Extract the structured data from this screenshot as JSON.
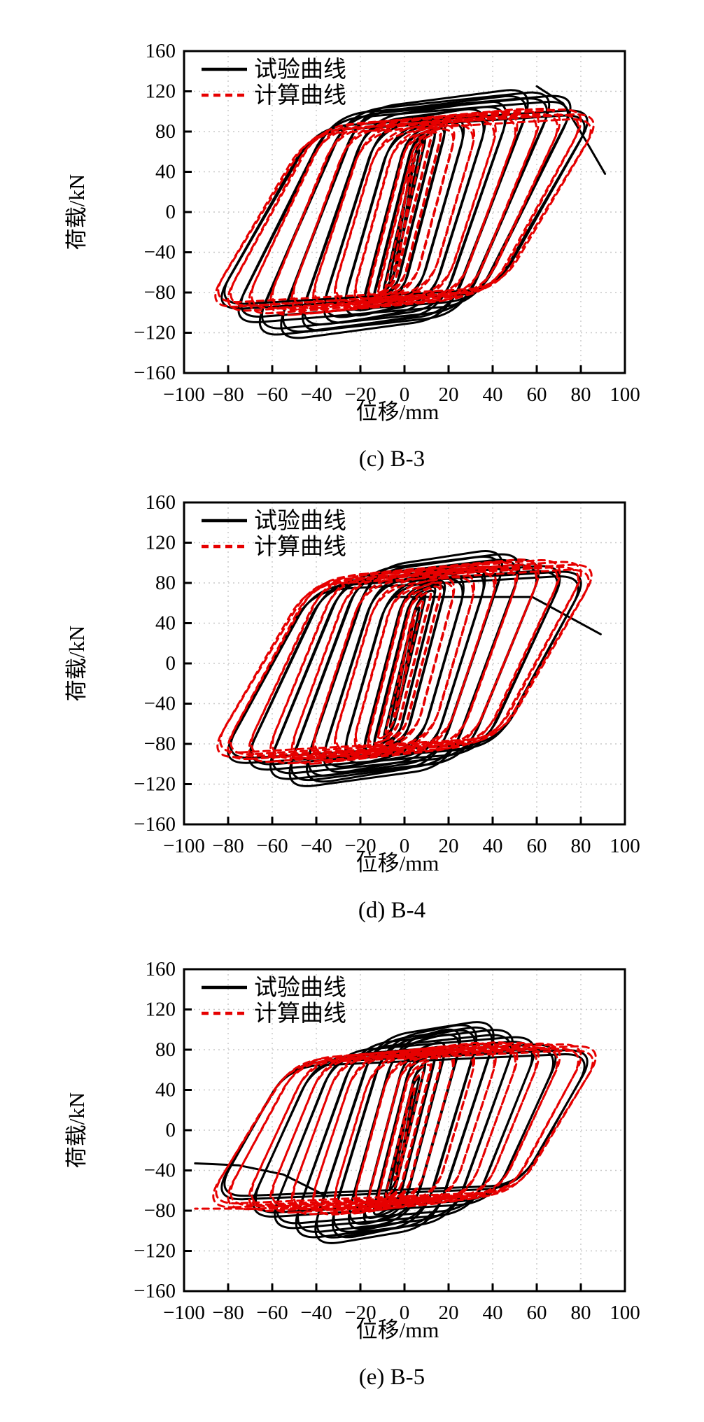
{
  "page": {
    "background": "#ffffff"
  },
  "colors": {
    "test_curve": "#000000",
    "calc_curve": "#e60000",
    "grid": "#c8c8c8",
    "axis": "#000000"
  },
  "legend": {
    "test_label": "试验曲线",
    "calc_label": "计算曲线"
  },
  "axes": {
    "xlabel": "位移/mm",
    "ylabel": "荷载/kN",
    "xlim": [
      -100,
      100
    ],
    "ylim": [
      -160,
      160
    ],
    "x_ticks": [
      -100,
      -80,
      -60,
      -40,
      -20,
      0,
      20,
      40,
      60,
      80,
      100
    ],
    "y_ticks": [
      -160,
      -120,
      -80,
      -40,
      0,
      40,
      80,
      120,
      160
    ],
    "grid": true,
    "legend_position": "top-left"
  },
  "chart_data": [
    {
      "type": "line",
      "id": "c",
      "caption": "(c) B-3",
      "xlabel": "位移/mm",
      "ylabel": "荷载/kN",
      "xlim": [
        -100,
        100
      ],
      "ylim": [
        -160,
        160
      ],
      "description": "hysteresis loops: cycles are [displacement amplitude mm, peak +load kN, peak -load kN]",
      "series": [
        {
          "name": "试验曲线",
          "style": "solid",
          "color": "#000000",
          "cycles": [
            [
              4,
              48,
              52
            ],
            [
              7,
              64,
              70
            ],
            [
              10,
              78,
              84
            ],
            [
              15,
              87,
              94
            ],
            [
              20,
              93,
              101
            ],
            [
              30,
              100,
              109
            ],
            [
              40,
              107,
              115
            ],
            [
              50,
              114,
              122
            ],
            [
              60,
              125,
              129
            ],
            [
              70,
              122,
              125
            ],
            [
              80,
              118,
              112
            ],
            [
              88,
              103,
              98
            ]
          ],
          "tails": [
            [
              [
                60,
                125
              ],
              [
                72,
                108
              ],
              [
                82,
                72
              ],
              [
                91,
                38
              ]
            ]
          ]
        },
        {
          "name": "计算曲线",
          "style": "dashed",
          "color": "#e60000",
          "cycles": [
            [
              5,
              55,
              60
            ],
            [
              9,
              72,
              78
            ],
            [
              13,
              83,
              88
            ],
            [
              18,
              88,
              92
            ],
            [
              25,
              92,
              96
            ],
            [
              35,
              96,
              99
            ],
            [
              45,
              100,
              102
            ],
            [
              55,
              103,
              104
            ],
            [
              65,
              105,
              105
            ],
            [
              75,
              105,
              103
            ],
            [
              85,
              104,
              100
            ],
            [
              91,
              99,
              96
            ]
          ],
          "tails": []
        }
      ]
    },
    {
      "type": "line",
      "id": "d",
      "caption": "(d) B-4",
      "xlabel": "位移/mm",
      "ylabel": "荷载/kN",
      "xlim": [
        -100,
        100
      ],
      "ylim": [
        -160,
        160
      ],
      "description": "hysteresis loops: cycles are [displacement amplitude mm, peak +load kN, peak -load kN]",
      "series": [
        {
          "name": "试验曲线",
          "style": "solid",
          "color": "#000000",
          "cycles": [
            [
              4,
              42,
              48
            ],
            [
              7,
              58,
              66
            ],
            [
              10,
              72,
              80
            ],
            [
              15,
              80,
              90
            ],
            [
              20,
              87,
              97
            ],
            [
              30,
              94,
              105
            ],
            [
              40,
              102,
              113
            ],
            [
              48,
              116,
              122
            ],
            [
              56,
              112,
              126
            ],
            [
              65,
              106,
              118
            ],
            [
              75,
              99,
              108
            ],
            [
              85,
              93,
              101
            ]
          ],
          "tails": [
            [
              [
                -5,
                66
              ],
              [
                58,
                66
              ],
              [
                89,
                29
              ]
            ]
          ]
        },
        {
          "name": "计算曲线",
          "style": "dashed",
          "color": "#e60000",
          "cycles": [
            [
              5,
              50,
              55
            ],
            [
              9,
              66,
              72
            ],
            [
              13,
              78,
              82
            ],
            [
              18,
              85,
              88
            ],
            [
              25,
              90,
              93
            ],
            [
              35,
              95,
              98
            ],
            [
              45,
              100,
              101
            ],
            [
              55,
              104,
              103
            ],
            [
              65,
              106,
              102
            ],
            [
              75,
              105,
              100
            ],
            [
              85,
              103,
              97
            ],
            [
              90,
              100,
              95
            ]
          ],
          "tails": []
        }
      ]
    },
    {
      "type": "line",
      "id": "e",
      "caption": "(e) B-5",
      "xlabel": "位移/mm",
      "ylabel": "荷载/kN",
      "xlim": [
        -100,
        100
      ],
      "ylim": [
        -160,
        160
      ],
      "description": "hysteresis loops: cycles are [displacement amplitude mm, peak +load kN, peak -load kN]",
      "series": [
        {
          "name": "试验曲线",
          "style": "solid",
          "color": "#000000",
          "cycles": [
            [
              4,
              40,
              45
            ],
            [
              7,
              55,
              62
            ],
            [
              10,
              70,
              78
            ],
            [
              15,
              82,
              88
            ],
            [
              20,
              92,
              97
            ],
            [
              28,
              106,
              104
            ],
            [
              36,
              110,
              112
            ],
            [
              44,
              112,
              117
            ],
            [
              53,
              103,
              110
            ],
            [
              63,
              95,
              100
            ],
            [
              73,
              87,
              88
            ],
            [
              88,
              81,
              70
            ]
          ],
          "tails": [
            [
              [
                -35,
                -66
              ],
              [
                -55,
                -44
              ],
              [
                -75,
                -35
              ],
              [
                -95,
                -33
              ]
            ]
          ]
        },
        {
          "name": "计算曲线",
          "style": "dashed",
          "color": "#e60000",
          "cycles": [
            [
              5,
              45,
              52
            ],
            [
              9,
              60,
              68
            ],
            [
              13,
              72,
              77
            ],
            [
              18,
              80,
              82
            ],
            [
              25,
              85,
              85
            ],
            [
              35,
              88,
              87
            ],
            [
              45,
              90,
              87
            ],
            [
              55,
              90,
              86
            ],
            [
              65,
              89,
              84
            ],
            [
              75,
              88,
              82
            ],
            [
              85,
              87,
              80
            ],
            [
              92,
              85,
              78
            ]
          ],
          "tails": [
            [
              [
                -38,
                -78
              ],
              [
                -95,
                -78
              ]
            ]
          ]
        }
      ]
    }
  ]
}
